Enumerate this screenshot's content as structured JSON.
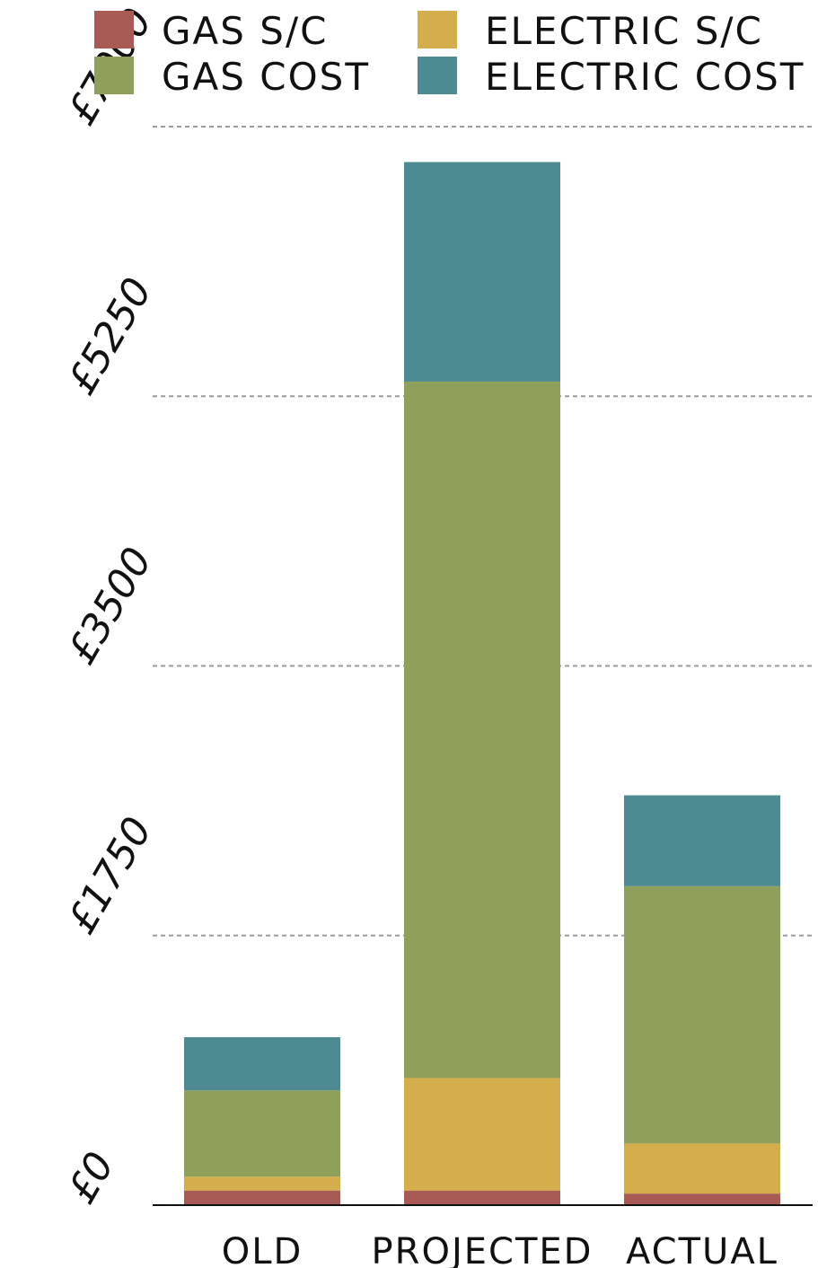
{
  "chart_data": {
    "type": "bar",
    "stacked": true,
    "categories": [
      "OLD",
      "PROJECTED",
      "ACTUAL"
    ],
    "series": [
      {
        "name": "GAS S/C",
        "color": "#a85a55",
        "values": [
          95,
          95,
          75
        ]
      },
      {
        "name": "ELECTRIC S/C",
        "color": "#d4ad4d",
        "values": [
          90,
          730,
          325
        ]
      },
      {
        "name": "GAS COST",
        "color": "#8ea05b",
        "values": [
          560,
          4520,
          1670
        ]
      },
      {
        "name": "ELECTRIC COST",
        "color": "#4e8a92",
        "values": [
          345,
          1425,
          590
        ]
      }
    ],
    "y_ticks": [
      0,
      1750,
      3500,
      5250,
      7000
    ],
    "y_tick_labels": [
      "£0",
      "£1750",
      "£3500",
      "£5250",
      "£7000"
    ],
    "ylim": [
      0,
      7000
    ],
    "grid": "horizontal dashed",
    "legend_position": "top"
  }
}
